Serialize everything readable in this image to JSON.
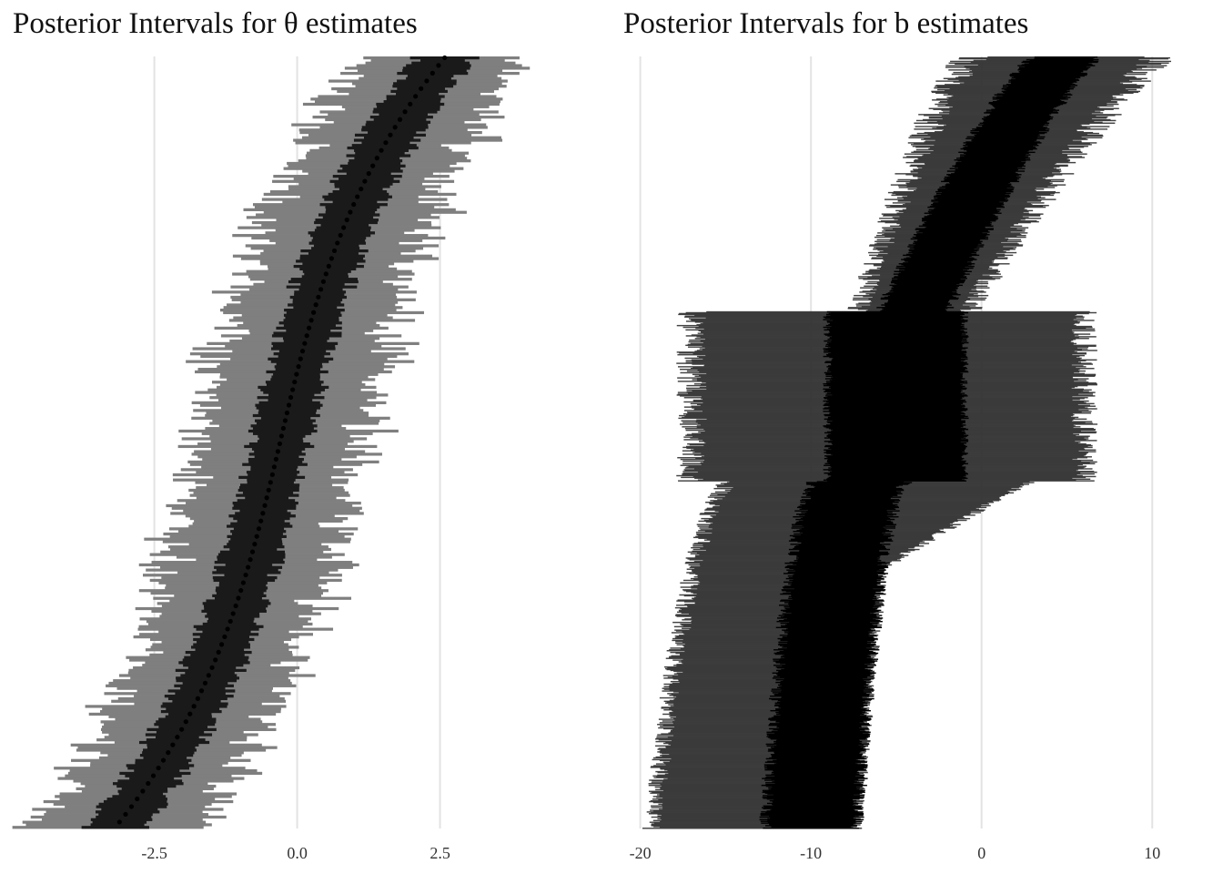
{
  "chart_data": [
    {
      "type": "interval",
      "title": "Posterior Intervals for  θ  estimates",
      "xlabel": "",
      "ylabel": "",
      "xlim": [
        -4.5,
        4.8
      ],
      "xticks": [
        -2.5,
        0.0,
        2.5
      ],
      "xtick_labels": [
        "-2.5",
        "0.0",
        "2.5"
      ],
      "grid": true,
      "n_intervals": 300,
      "median_range": [
        -3.2,
        2.6
      ],
      "inner_interval_halfwidth": 0.5,
      "outer_interval_halfwidth_range": [
        1.1,
        1.8
      ],
      "inner_color": "#1a1a1a",
      "outer_color": "#7f7f7f",
      "point_color": "#000000"
    },
    {
      "type": "interval",
      "title": "Posterior Intervals for b estimates",
      "xlabel": "",
      "ylabel": "",
      "xlim": [
        -20.3,
        11.8
      ],
      "xticks": [
        -20,
        -10,
        0,
        10
      ],
      "xtick_labels": [
        "-20",
        "-10",
        "0",
        "10"
      ],
      "grid": true,
      "n_intervals": 900,
      "segments": [
        {
          "rows_from_top": [
            0,
            0.33
          ],
          "median": [
            5,
            -4
          ],
          "inner_halfwidth": 2,
          "outer_halfwidth": 5
        },
        {
          "rows_from_top": [
            0.33,
            0.55
          ],
          "median": [
            -9,
            -9
          ],
          "inner": [
            -9,
            -1
          ],
          "outer": [
            -17,
            6
          ]
        },
        {
          "rows_from_top": [
            0.55,
            1.0
          ],
          "median": [
            -7,
            -10
          ],
          "inner_halfwidth": 2.7,
          "outer_halfwidth": 7.5
        }
      ],
      "inner_color": "#000000",
      "outer_color": "#333333"
    }
  ]
}
